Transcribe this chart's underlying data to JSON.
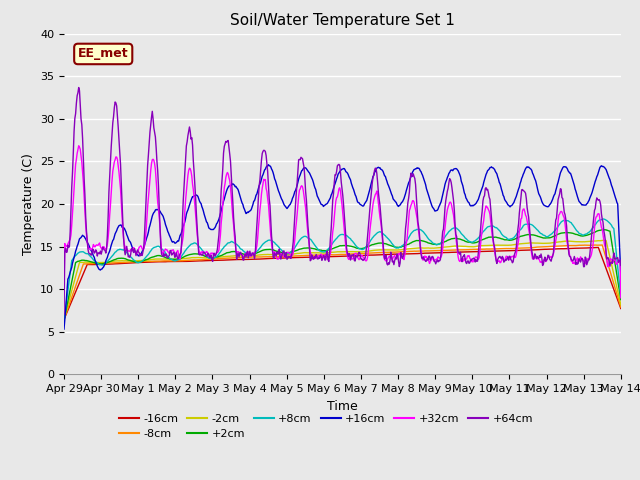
{
  "title": "Soil/Water Temperature Set 1",
  "xlabel": "Time",
  "ylabel": "Temperature (C)",
  "ylim": [
    0,
    40
  ],
  "yticks": [
    0,
    5,
    10,
    15,
    20,
    25,
    30,
    35,
    40
  ],
  "bg_color": "#e8e8e8",
  "annotation_text": "EE_met",
  "annotation_bg": "#ffffcc",
  "annotation_border": "#880000",
  "series_colors": {
    "-16cm": "#cc0000",
    "-8cm": "#ff8800",
    "-2cm": "#cccc00",
    "+2cm": "#00aa00",
    "+8cm": "#00bbbb",
    "+16cm": "#0000cc",
    "+32cm": "#ff00ff",
    "+64cm": "#8800bb"
  },
  "xtick_labels": [
    "Apr 29",
    "Apr 30",
    "May 1",
    "May 2",
    "May 3",
    "May 4",
    "May 5",
    "May 6",
    "May 7",
    "May 8",
    "May 9",
    "May 10",
    "May 11",
    "May 12",
    "May 13",
    "May 14"
  ],
  "title_fontsize": 11,
  "axis_label_fontsize": 9,
  "tick_fontsize": 8
}
